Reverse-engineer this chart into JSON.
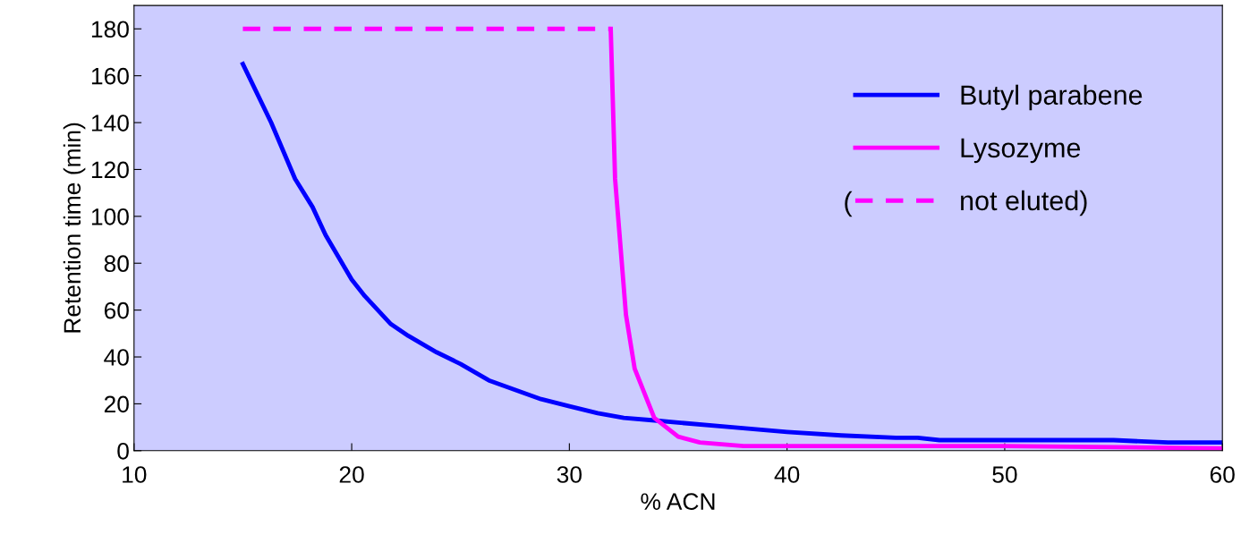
{
  "chart_data": {
    "type": "line",
    "xlabel": "% ACN",
    "ylabel": "Retention time (min)",
    "xlim": [
      10,
      60
    ],
    "xticks": [
      10,
      20,
      30,
      40,
      50,
      60
    ],
    "ylim": [
      0,
      190
    ],
    "yticks": [
      0,
      20,
      40,
      60,
      80,
      100,
      120,
      140,
      160,
      180
    ],
    "grid": false,
    "legend": "top right",
    "marker": "none",
    "annotations": [
      "("
    ],
    "series": [
      {
        "name": "Butyl parabene",
        "color": "#0000ff",
        "line_style": "solid",
        "x": [
          15,
          16.3,
          17.4,
          18.2,
          18.8,
          20,
          20.6,
          21.8,
          22.6,
          23.9,
          25,
          26.3,
          27.5,
          28.7,
          30,
          31.3,
          32.5,
          33.8,
          35,
          37.5,
          40,
          42.5,
          45,
          46,
          47,
          50,
          55,
          57.5,
          60
        ],
        "values": [
          165,
          140,
          116,
          104,
          92,
          73,
          66,
          54,
          49,
          42,
          37,
          30,
          26,
          22,
          19,
          16,
          14,
          13,
          12,
          10,
          8,
          6.5,
          5.5,
          5.5,
          4.5,
          4.5,
          4.5,
          3.5,
          3.5
        ]
      },
      {
        "name": "Lysozyme",
        "color": "#ff00ff",
        "line_style": "solid",
        "x": [
          31.9,
          32.1,
          32.6,
          33,
          33.9,
          35,
          36,
          38,
          40,
          50,
          60
        ],
        "values": [
          180,
          116,
          58,
          35,
          14,
          6,
          3.5,
          2,
          2,
          2,
          1
        ]
      },
      {
        "name": "not eluted)",
        "color": "#ff00ff",
        "line_style": "dashed",
        "x": [
          15,
          31.9
        ],
        "values": [
          180,
          180
        ]
      }
    ]
  }
}
